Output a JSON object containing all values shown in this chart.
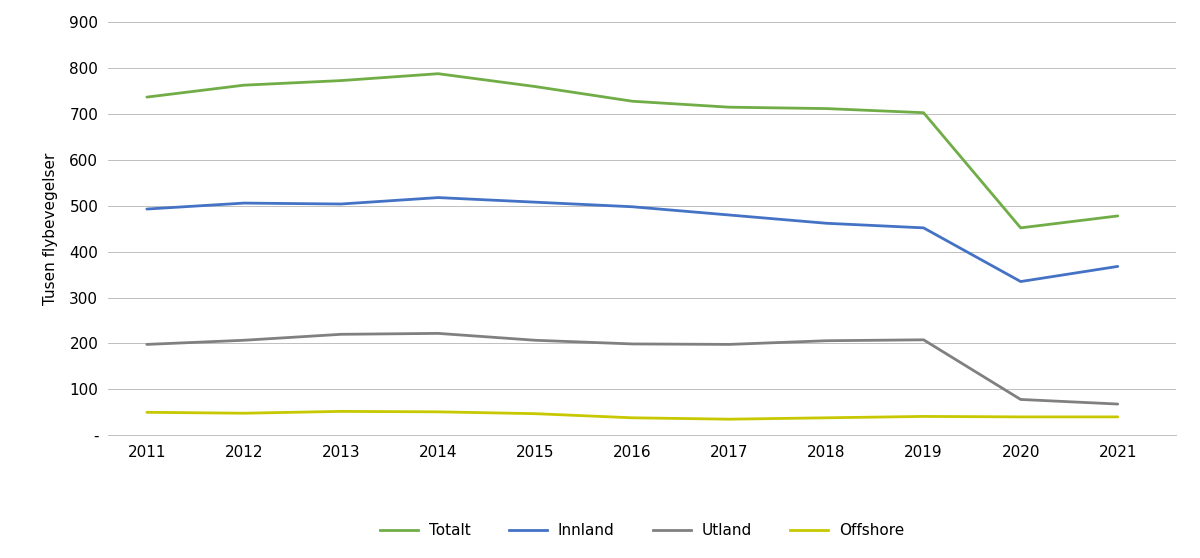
{
  "ylabel": "Tusen flybevegelser",
  "years": [
    2011,
    2012,
    2013,
    2014,
    2015,
    2016,
    2017,
    2018,
    2019,
    2020,
    2021
  ],
  "series": {
    "Totalt": {
      "values": [
        737,
        763,
        773,
        788,
        760,
        728,
        715,
        712,
        703,
        452,
        478
      ],
      "color": "#70ad47",
      "linewidth": 2.0
    },
    "Innland": {
      "values": [
        493,
        506,
        504,
        518,
        508,
        498,
        480,
        462,
        452,
        335,
        368
      ],
      "color": "#4472c4",
      "linewidth": 2.0
    },
    "Utland": {
      "values": [
        198,
        207,
        220,
        222,
        207,
        199,
        198,
        206,
        208,
        78,
        68
      ],
      "color": "#808080",
      "linewidth": 2.0
    },
    "Offshore": {
      "values": [
        50,
        48,
        52,
        51,
        47,
        38,
        35,
        38,
        41,
        40,
        40
      ],
      "color": "#c8c800",
      "linewidth": 2.0
    }
  },
  "ylim": [
    0,
    900
  ],
  "yticks": [
    0,
    100,
    200,
    300,
    400,
    500,
    600,
    700,
    800,
    900
  ],
  "background_color": "#ffffff",
  "grid_color": "#bebebe",
  "legend_order": [
    "Totalt",
    "Innland",
    "Utland",
    "Offshore"
  ]
}
